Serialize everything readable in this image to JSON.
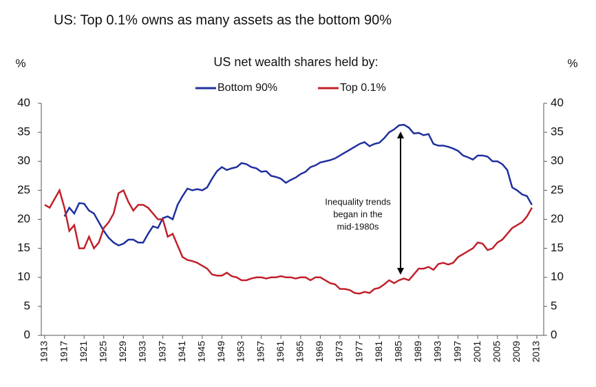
{
  "chart_data": {
    "type": "line",
    "title": "US: Top 0.1% owns as many assets as the bottom 90%",
    "subtitle": "US net wealth shares held by:",
    "y_label": "%",
    "y2_label": "%",
    "annotation": [
      "Inequality trends",
      "began in the",
      "mid-1980s"
    ],
    "x": [
      1913,
      1914,
      1915,
      1916,
      1917,
      1918,
      1919,
      1920,
      1921,
      1922,
      1923,
      1924,
      1925,
      1926,
      1927,
      1928,
      1929,
      1930,
      1931,
      1932,
      1933,
      1934,
      1935,
      1936,
      1937,
      1938,
      1939,
      1940,
      1941,
      1942,
      1943,
      1944,
      1945,
      1946,
      1947,
      1948,
      1949,
      1950,
      1951,
      1952,
      1953,
      1954,
      1955,
      1956,
      1957,
      1958,
      1959,
      1960,
      1961,
      1962,
      1963,
      1964,
      1965,
      1966,
      1967,
      1968,
      1969,
      1970,
      1971,
      1972,
      1973,
      1974,
      1975,
      1976,
      1977,
      1978,
      1979,
      1980,
      1981,
      1982,
      1983,
      1984,
      1985,
      1986,
      1987,
      1988,
      1989,
      1990,
      1991,
      1992,
      1993,
      1994,
      1995,
      1996,
      1997,
      1998,
      1999,
      2000,
      2001,
      2002,
      2003,
      2004,
      2005,
      2006,
      2007,
      2008,
      2009,
      2010,
      2011,
      2012
    ],
    "series": [
      {
        "name": "Bottom 90%",
        "color": "#1f2f9e",
        "values": [
          null,
          null,
          null,
          null,
          20.5,
          22,
          21,
          22.8,
          22.7,
          21.5,
          21,
          19.5,
          18,
          16.8,
          16,
          15.5,
          15.8,
          16.5,
          16.5,
          16,
          16,
          17.5,
          18.8,
          18.5,
          20.2,
          20.5,
          20,
          22.5,
          24,
          25.3,
          25,
          25.2,
          25,
          25.5,
          27,
          28.3,
          29,
          28.5,
          28.8,
          29,
          29.7,
          29.5,
          29,
          28.8,
          28.2,
          28.3,
          27.5,
          27.3,
          27,
          26.3,
          26.8,
          27.2,
          27.8,
          28.2,
          29,
          29.3,
          29.8,
          30,
          30.2,
          30.5,
          31,
          31.5,
          32,
          32.5,
          33,
          33.3,
          32.6,
          33,
          33.2,
          34,
          35,
          35.5,
          36.2,
          36.3,
          35.8,
          34.8,
          34.9,
          34.5,
          34.7,
          33,
          32.7,
          32.7,
          32.5,
          32.2,
          31.8,
          31,
          30.7,
          30.3,
          31,
          31,
          30.8,
          30,
          30,
          29.5,
          28.5,
          25.5,
          25,
          24.3,
          24,
          22.5
        ]
      },
      {
        "name": "Top 0.1%",
        "color": "#c0202a",
        "values": [
          22.5,
          22,
          23.5,
          25,
          22,
          18,
          19,
          15,
          15,
          17,
          15,
          16,
          18.5,
          19.5,
          21,
          24.5,
          25,
          23,
          21.5,
          22.5,
          22.5,
          22,
          21,
          20,
          20,
          17,
          17.5,
          15.5,
          13.5,
          13,
          12.8,
          12.5,
          12,
          11.5,
          10.5,
          10.3,
          10.3,
          10.8,
          10.2,
          10,
          9.5,
          9.5,
          9.8,
          10,
          10,
          9.8,
          10,
          10,
          10.2,
          10,
          10,
          9.8,
          10,
          10,
          9.5,
          10,
          10,
          9.5,
          9,
          8.8,
          8,
          8,
          7.8,
          7.3,
          7.2,
          7.5,
          7.3,
          8,
          8.2,
          8.8,
          9.5,
          9,
          9.5,
          9.8,
          9.5,
          10.5,
          11.5,
          11.5,
          11.8,
          11.3,
          12.3,
          12.5,
          12.2,
          12.5,
          13.5,
          14,
          14.5,
          15,
          16,
          15.8,
          14.7,
          15,
          16,
          16.5,
          17.5,
          18.5,
          19,
          19.5,
          20.5,
          22
        ]
      }
    ],
    "xlim": [
      1912.3,
      2014.4
    ],
    "xticks": [
      1913,
      1917,
      1921,
      1925,
      1929,
      1933,
      1937,
      1941,
      1945,
      1949,
      1953,
      1957,
      1961,
      1965,
      1969,
      1973,
      1977,
      1981,
      1985,
      1989,
      1993,
      1997,
      2001,
      2005,
      2009,
      2013
    ],
    "ylim": [
      0,
      40
    ],
    "yticks": [
      0,
      5,
      10,
      15,
      20,
      25,
      30,
      35,
      40
    ],
    "y2lim": [
      0,
      40
    ],
    "y2ticks": [
      0,
      5,
      10,
      15,
      20,
      25,
      30,
      35,
      40
    ]
  }
}
